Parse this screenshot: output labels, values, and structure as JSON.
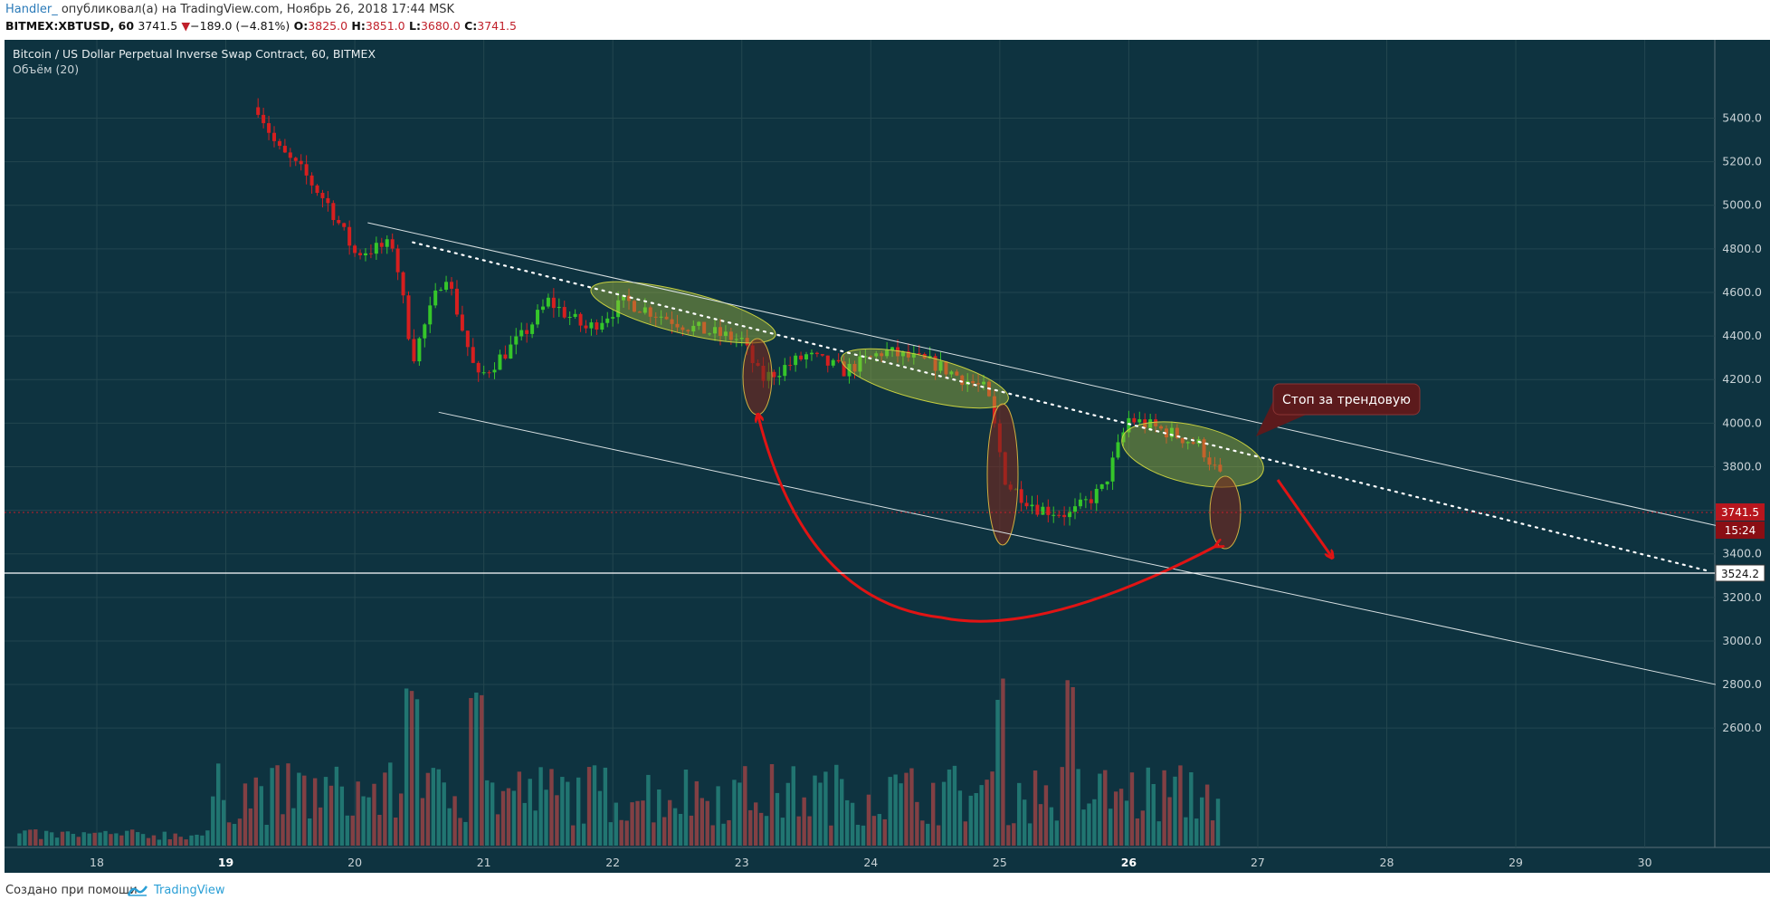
{
  "header": {
    "author": "Handler_",
    "published": "опубликовал(а) на TradingView.com, Ноябрь 26, 2018 17:44 MSK",
    "symbol": "BITMEX:XBTUSD, 60",
    "last": "3741.5",
    "change_arrow": "▼",
    "change": "−189.0 (−4.81%)",
    "o_label": "O:",
    "o": "3825.0",
    "h_label": "H:",
    "h": "3851.0",
    "l_label": "L:",
    "l": "3680.0",
    "c_label": "C:",
    "c": "3741.5"
  },
  "chart": {
    "instrument": "Bitcoin / US Dollar Perpetual Inverse Swap Contract, 60, BITMEX",
    "volume_label": "Объём (20)",
    "annotation": "Стоп за трендовую",
    "price_tag": "3741.5",
    "countdown": "15:24",
    "level_tag": "3524.2"
  },
  "footer": {
    "made_with": "Создано при помощи",
    "brand": "TradingView"
  },
  "chart_data": {
    "type": "candlestick",
    "title": "Bitcoin / US Dollar Perpetual Inverse Swap Contract, 60, BITMEX",
    "interval": "60",
    "y_axis_side": "right",
    "ylim": [
      2500,
      5500
    ],
    "y_ticks": [
      5400,
      5200,
      5000,
      4800,
      4600,
      4400,
      4200,
      4000,
      3800,
      3600,
      3400,
      3200,
      3000,
      2800,
      2600
    ],
    "x_ticks": [
      "18",
      "19",
      "20",
      "21",
      "22",
      "23",
      "24",
      "25",
      "26",
      "27",
      "28",
      "29",
      "30"
    ],
    "x_range_days": [
      17.3,
      30.6
    ],
    "price_path": [
      {
        "day": 19.25,
        "price": 5450
      },
      {
        "day": 19.4,
        "price": 5260
      },
      {
        "day": 19.6,
        "price": 5150
      },
      {
        "day": 19.8,
        "price": 5000
      },
      {
        "day": 20.0,
        "price": 4780
      },
      {
        "day": 20.3,
        "price": 4820
      },
      {
        "day": 20.45,
        "price": 4300
      },
      {
        "day": 20.7,
        "price": 4700
      },
      {
        "day": 20.95,
        "price": 4200
      },
      {
        "day": 21.3,
        "price": 4400
      },
      {
        "day": 21.5,
        "price": 4560
      },
      {
        "day": 21.8,
        "price": 4430
      },
      {
        "day": 22.1,
        "price": 4560
      },
      {
        "day": 22.6,
        "price": 4440
      },
      {
        "day": 23.0,
        "price": 4380
      },
      {
        "day": 23.15,
        "price": 4200
      },
      {
        "day": 23.5,
        "price": 4310
      },
      {
        "day": 23.8,
        "price": 4240
      },
      {
        "day": 24.1,
        "price": 4330
      },
      {
        "day": 24.5,
        "price": 4270
      },
      {
        "day": 24.9,
        "price": 4150
      },
      {
        "day": 25.05,
        "price": 3720
      },
      {
        "day": 25.3,
        "price": 3610
      },
      {
        "day": 25.55,
        "price": 3580
      },
      {
        "day": 25.8,
        "price": 3700
      },
      {
        "day": 26.0,
        "price": 4020
      },
      {
        "day": 26.3,
        "price": 3960
      },
      {
        "day": 26.55,
        "price": 3900
      },
      {
        "day": 26.72,
        "price": 3741.5
      }
    ],
    "last_price": 3741.5,
    "horizontal_level": 3524.2,
    "volume_series": "Объём (20)",
    "annotations": [
      {
        "type": "text",
        "text": "Стоп за трендовую"
      },
      {
        "type": "channel_upper",
        "from": {
          "day": 20.1,
          "price": 4920
        },
        "to": {
          "day": 30.55,
          "price": 3530
        }
      },
      {
        "type": "channel_lower",
        "from": {
          "day": 20.65,
          "price": 4050
        },
        "to": {
          "day": 30.55,
          "price": 2800
        }
      },
      {
        "type": "dotted_trend",
        "from": {
          "day": 20.45,
          "price": 4830
        },
        "to": {
          "day": 30.5,
          "price": 3320
        }
      }
    ]
  }
}
